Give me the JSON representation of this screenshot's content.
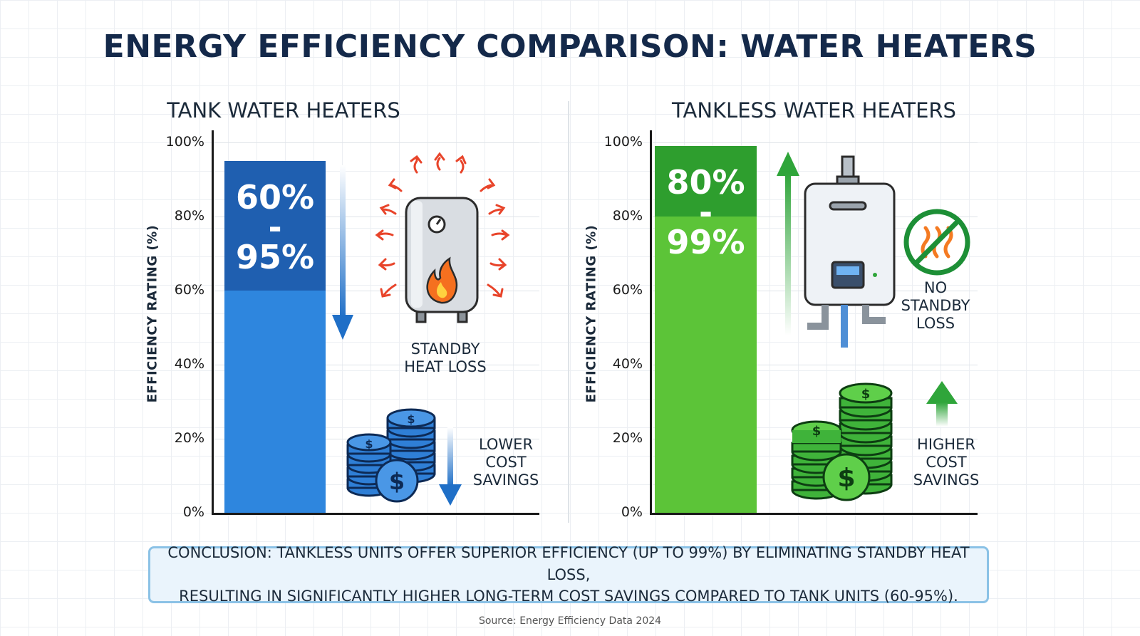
{
  "title": "ENERGY EFFICIENCY COMPARISON: WATER HEATERS",
  "chart_data": [
    {
      "type": "bar",
      "title": "TANK WATER HEATERS",
      "ylabel": "EFFICIENCY RATING (%)",
      "ylim": [
        0,
        100
      ],
      "yticks": [
        "0%",
        "20%",
        "40%",
        "60%",
        "80%",
        "100%"
      ],
      "range": [
        60,
        95
      ],
      "value_label": [
        "60%",
        "-",
        "95%"
      ],
      "colors": {
        "bar": "#2e86de",
        "range": "#1f5fb0",
        "arrow": "#1f6fc7"
      },
      "annotations": [
        {
          "text": "STANDBY HEAT LOSS",
          "direction": "down"
        },
        {
          "text": "LOWER COST SAVINGS",
          "direction": "down"
        }
      ]
    },
    {
      "type": "bar",
      "title": "TANKLESS WATER HEATERS",
      "ylabel": "EFFICIENCY RATING (%)",
      "ylim": [
        0,
        100
      ],
      "yticks": [
        "0%",
        "20%",
        "40%",
        "60%",
        "80%",
        "100%"
      ],
      "range": [
        80,
        99
      ],
      "value_label": [
        "80%",
        "-",
        "99%"
      ],
      "colors": {
        "bar": "#5cc438",
        "range": "#2e9e2e",
        "arrow": "#2fa53a"
      },
      "annotations": [
        {
          "text": "NO STANDBY LOSS",
          "direction": "none"
        },
        {
          "text": "HIGHER COST SAVINGS",
          "direction": "up"
        }
      ]
    }
  ],
  "notes": {
    "standby_heat_loss": [
      "STANDBY",
      "HEAT LOSS"
    ],
    "lower_cost_savings": [
      "LOWER",
      "COST",
      "SAVINGS"
    ],
    "no_standby_loss": [
      "NO",
      "STANDBY",
      "LOSS"
    ],
    "higher_cost_savings": [
      "HIGHER",
      "COST",
      "SAVINGS"
    ]
  },
  "conclusion": {
    "line1": "CONCLUSION: TANKLESS UNITS OFFER SUPERIOR EFFICIENCY (UP TO 99%) BY ELIMINATING STANDBY HEAT LOSS,",
    "line2": "RESULTING IN SIGNIFICANTLY HIGHER LONG-TERM COST SAVINGS COMPARED TO TANK UNITS (60-95%)."
  },
  "source": "Source: Energy Efficiency Data 2024",
  "icons": [
    "water-heater-tank-icon",
    "flame-icon",
    "heat-wave-arrow-icon",
    "coin-stack-icon",
    "tankless-heater-icon",
    "no-heat-loss-icon",
    "down-arrow-icon",
    "up-arrow-icon"
  ]
}
